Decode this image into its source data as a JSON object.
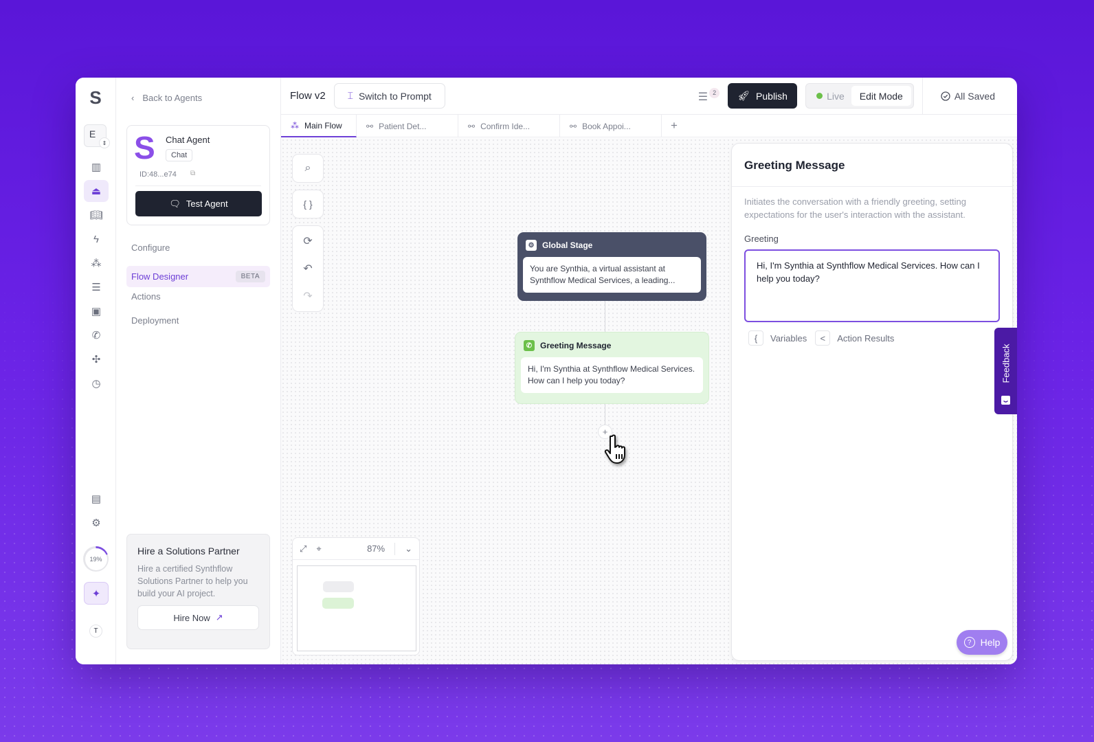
{
  "colors": {
    "accent": "#6d3fd6",
    "dark": "#1f2330",
    "live": "#6cc04a",
    "feedback": "#4b1aa5",
    "help": "#a07ef0"
  },
  "rail": {
    "workspace_letter": "E",
    "progress_label": "19%",
    "progress": 0.19,
    "user_initial": "T",
    "icons": [
      "chart-icon",
      "agent-icon",
      "book-icon",
      "bolt-icon",
      "flow-icon",
      "checklist-icon",
      "contact-icon",
      "phone-icon",
      "puzzle-icon",
      "clock-icon",
      "building-icon",
      "gear-icon",
      "sparkle-icon"
    ]
  },
  "sidebar": {
    "back_label": "Back to Agents",
    "agent": {
      "name": "Chat Agent",
      "type_badge": "Chat",
      "id": "ID:48...e74",
      "test_button": "Test Agent"
    },
    "nav": [
      {
        "label": "Configure"
      },
      {
        "label": "Flow Designer",
        "badge": "BETA",
        "active": true
      },
      {
        "label": "Actions"
      },
      {
        "label": "Deployment"
      }
    ],
    "promo": {
      "title": "Hire a Solutions Partner",
      "text": "Hire a certified Synthflow Solutions Partner to help you build your AI project.",
      "button": "Hire Now"
    }
  },
  "header": {
    "title": "Flow v2",
    "switch_button": "Switch to Prompt",
    "task_count": "2",
    "publish_button": "Publish",
    "mode_live": "Live",
    "mode_edit": "Edit Mode",
    "save_status": "All Saved"
  },
  "tabs": [
    {
      "label": "Main Flow",
      "active": true
    },
    {
      "label": "Patient Det..."
    },
    {
      "label": "Confirm Ide..."
    },
    {
      "label": "Book Appoi..."
    }
  ],
  "tabs_add": "+",
  "canvas": {
    "tools": [
      "search-icon",
      "braces-icon",
      "refresh-icon",
      "undo-icon",
      "redo-icon"
    ],
    "nodes": {
      "global": {
        "title": "Global Stage",
        "text": "You are Synthia, a virtual assistant at Synthflow Medical Services, a leading..."
      },
      "greeting": {
        "title": "Greeting Message",
        "text": "Hi, I'm Synthia at Synthflow Medical Services. How can I help you today?"
      }
    },
    "add_node": "+",
    "zoom_level": "87%"
  },
  "panel": {
    "title": "Greeting Message",
    "description": "Initiates the conversation with a friendly greeting, setting expectations for the user's interaction with the assistant.",
    "field_label": "Greeting",
    "field_value": "Hi, I'm Synthia at Synthflow Medical Services. How can I help you today?",
    "variables_key": "{",
    "variables_label": "Variables",
    "actions_key": "<",
    "actions_label": "Action Results"
  },
  "feedback_label": "Feedback",
  "help_label": "Help"
}
